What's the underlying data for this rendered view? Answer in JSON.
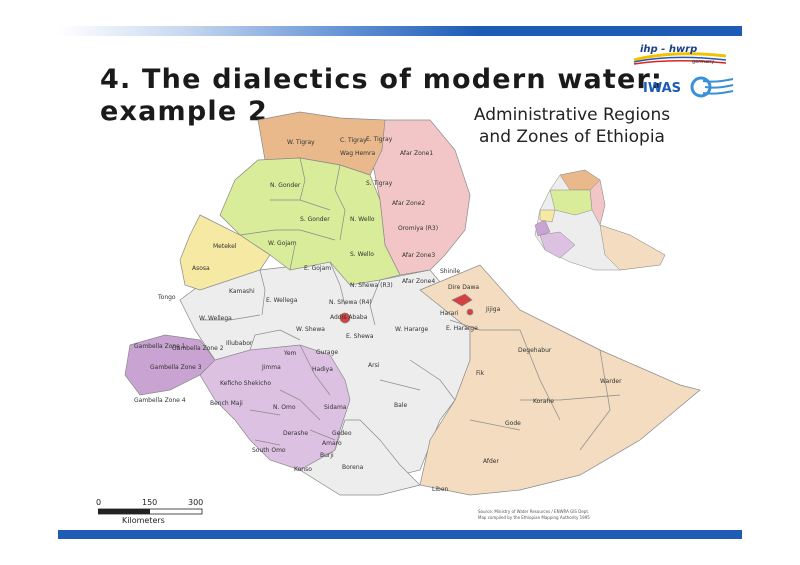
{
  "slide": {
    "title_line1": "4. The dialectics of modern water:",
    "title_line2": "example 2"
  },
  "logos": {
    "ihp_text": "ihp - hwrp",
    "ihp_sub": "germany",
    "iwas_text": "IWAS"
  },
  "map": {
    "title_line1": "Administrative Regions",
    "title_line2": "and Zones of Ethiopia",
    "scale": {
      "ticks": [
        "0",
        "150",
        "300"
      ],
      "unit": "Kilometers"
    },
    "source_line1": "Source: Ministry of Water Resources / ENWRA GIS Dept.",
    "source_line2": "Map compiled by the Ethiopian Mapping Authority 1995",
    "colors": {
      "tigray": "#e9b98c",
      "afar": "#f2c6c6",
      "amhara": "#d9ec9a",
      "oromiya": "#ededee",
      "somali": "#f3dcc0",
      "snnpr": "#dcc1e2",
      "gambella": "#c9a3d1",
      "benishangul": "#f5e9a3",
      "hareri_addis": "#d64040",
      "border": "#8a8a8a"
    },
    "zones": {
      "w_tigray": "W. Tigray",
      "c_tigray": "C. Tigray",
      "e_tigray": "E. Tigray",
      "s_tigray": "S. Tigray",
      "afar1": "Afar Zone1",
      "afar2": "Afar Zone2",
      "afar3": "Afar Zone3",
      "afar4": "Afar Zone4",
      "n_gonder": "N. Gonder",
      "s_gonder": "S. Gonder",
      "wag_hemra": "Wag Hemra",
      "n_wello": "N. Wello",
      "s_wello": "S. Wello",
      "oromiya_r3": "Oromiya (R3)",
      "w_gojam": "W. Gojam",
      "e_gojam": "E. Gojam",
      "n_shewa": "N. Shewa (R3)",
      "metekel": "Metekel",
      "asosa": "Asosa",
      "kamashi": "Kamashi",
      "tongo": "Tongo",
      "e_wellega": "E. Wellega",
      "w_wellega": "W. Wellega",
      "n_shewa_r4": "N. Shewa (R4)",
      "addis": "Addis Ababa",
      "w_shewa": "W. Shewa",
      "e_shewa": "E. Shewa",
      "shinile": "Shinile",
      "dire_dawa": "Dire Dawa",
      "harari": "Harari",
      "jijiga": "Jijiga",
      "w_hararge": "W. Hararge",
      "e_hararge": "E. Hararge",
      "illubabor": "Illubabor",
      "jimma": "Jimma",
      "yem": "Yem",
      "gurage": "Gurage",
      "hadiya": "Hadiya",
      "arsi": "Arsi",
      "degehabur": "Degehabur",
      "warder": "Warder",
      "fik": "Fik",
      "gambella_z1": "Gambella Zone 1",
      "gambella_z2": "Gambella Zone 2",
      "gambella_z3": "Gambella Zone 3",
      "gambella_z4": "Gambella Zone 4",
      "kefficho": "Keficho Shekicho",
      "bench_maji": "Bench Maji",
      "n_omo": "N. Omo",
      "sidama": "Sidama",
      "bale": "Bale",
      "korahe": "Korahe",
      "gode": "Gode",
      "gedeo": "Gedeo",
      "derashe": "Derashe",
      "amaro": "Amaro",
      "burji": "Burji",
      "s_omo": "South Omo",
      "borena": "Borena",
      "konso": "Konso",
      "afder": "Afder",
      "liben": "Liben"
    }
  }
}
